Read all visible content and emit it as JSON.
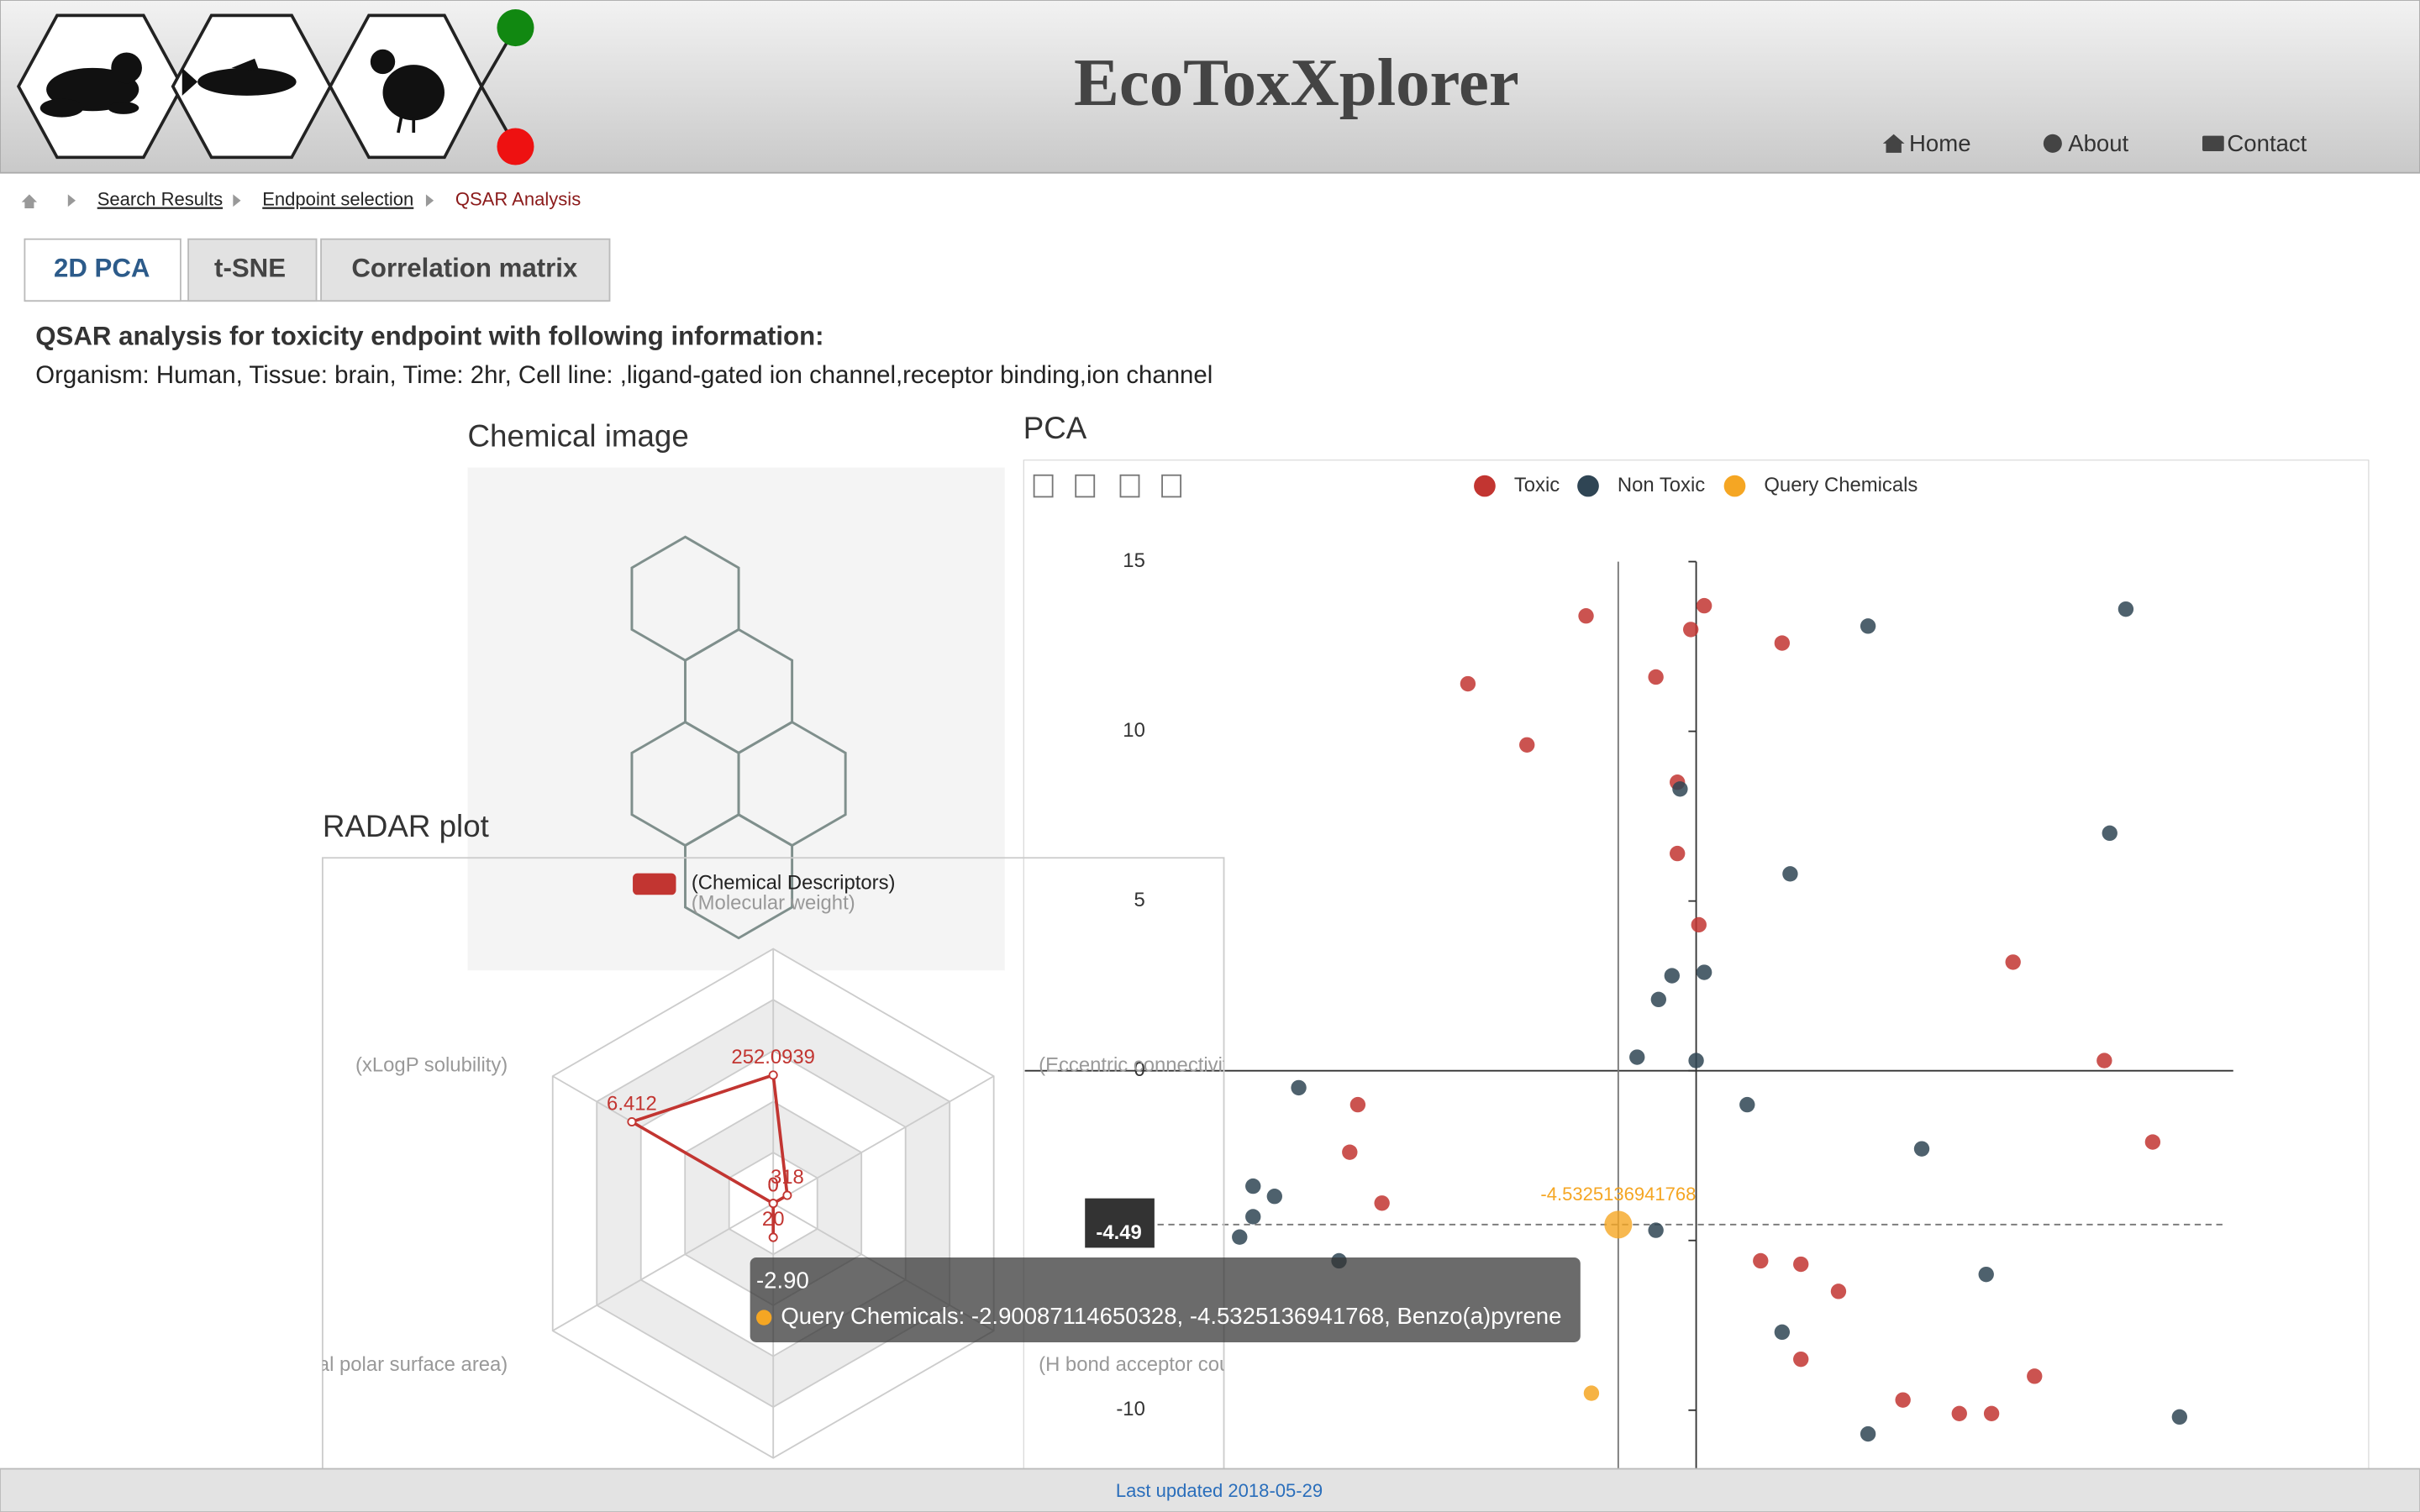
{
  "header": {
    "title": "EcoToxXplorer",
    "nav": [
      "Home",
      "About",
      "Contact"
    ]
  },
  "breadcrumb": [
    "Search Results",
    "Endpoint selection",
    "QSAR Analysis"
  ],
  "tabs": [
    "2D PCA",
    "t-SNE",
    "Correlation matrix"
  ],
  "info": {
    "heading": "QSAR analysis for toxicity endpoint with following information:",
    "details": "Organism: Human, Tissue: brain, Time: 2hr, Cell line: ,ligand-gated ion channel,receptor binding,ion channel"
  },
  "chemical_image": {
    "title": "Chemical image"
  },
  "chart_data": [
    {
      "type": "scatter",
      "title": "PCA",
      "xlim": [
        -25,
        20
      ],
      "ylim": [
        -15,
        15
      ],
      "yticks": [
        -10,
        -5,
        0,
        5,
        10,
        15
      ],
      "series": [
        {
          "name": "Toxic",
          "color": "#c23531",
          "x": [
            0.3,
            -4.1,
            -0.2,
            3.2,
            -1.5,
            -8.5,
            -6.3,
            -0.7,
            -0.7,
            0.1,
            11.8,
            15.2,
            -12.6,
            -12.9,
            -11.7,
            17.0,
            2.4,
            3.9,
            5.3,
            3.9,
            12.6,
            7.7,
            9.8,
            11.0
          ],
          "values": [
            13.7,
            13.4,
            13.0,
            12.6,
            11.6,
            11.4,
            9.6,
            8.5,
            6.4,
            4.3,
            3.2,
            0.3,
            -1.0,
            -2.4,
            -3.9,
            -2.1,
            -5.6,
            -5.7,
            -6.5,
            -8.5,
            -9.0,
            -9.7,
            -10.1,
            -10.1
          ]
        },
        {
          "name": "Non Toxic",
          "color": "#2f4554",
          "x": [
            6.4,
            16.0,
            -0.6,
            15.4,
            3.5,
            -0.9,
            0.3,
            -1.4,
            -2.2,
            0.0,
            -14.8,
            1.9,
            8.4,
            -16.5,
            -15.7,
            -16.5,
            -17.0,
            -1.5,
            -13.3,
            10.8,
            3.2,
            18.0,
            6.4
          ],
          "values": [
            13.1,
            13.6,
            8.3,
            7.0,
            5.8,
            2.8,
            2.9,
            2.1,
            0.4,
            0.3,
            -0.5,
            -1.0,
            -2.3,
            -3.4,
            -3.7,
            -4.3,
            -4.9,
            -4.7,
            -5.6,
            -6.0,
            -7.7,
            -10.2,
            -10.7
          ]
        },
        {
          "name": "Query Chemicals",
          "color": "#f5a623",
          "x": [
            -2.90087114650328,
            -3.9
          ],
          "values": [
            -4.5325136941768,
            -9.5
          ]
        }
      ],
      "pointer": {
        "y_label": "-4.49",
        "point_label": "-4.5325136941768"
      },
      "tooltip": {
        "header": "-2.90",
        "text": "Query Chemicals: -2.90087114650328, -4.5325136941768, Benzo(a)pyrene"
      }
    },
    {
      "type": "radar",
      "title": "RADAR plot",
      "indicators": [
        {
          "name": "(Molecular weight)",
          "max": 500
        },
        {
          "name": "(Eccentric connectivity)",
          "max": 5000
        },
        {
          "name": "(H bond acceptor count)",
          "max": 10
        },
        {
          "name": null,
          "max": 150
        },
        {
          "name": "(Topological polar surface area)",
          "max": 150
        },
        {
          "name": "(xLogP solubility)",
          "max": 10
        }
      ],
      "series": [
        {
          "name": "(Chemical Descriptors)",
          "color": "#c23531",
          "values": [
            252.0939,
            318,
            0,
            20,
            0,
            6.412
          ]
        }
      ]
    }
  ],
  "footer": "Last updated 2018-05-29"
}
